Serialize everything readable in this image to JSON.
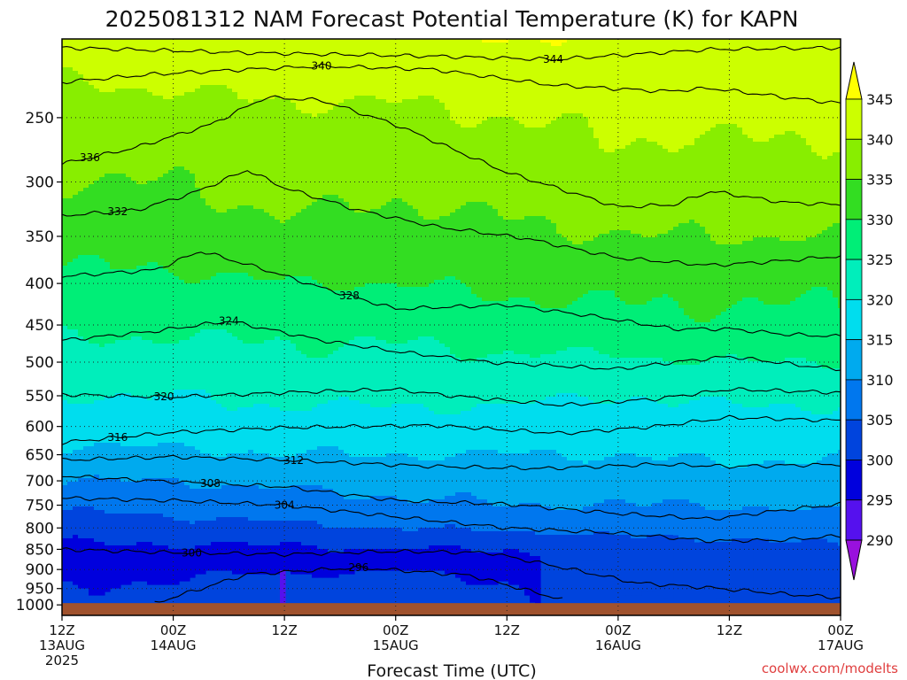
{
  "chart_data": {
    "type": "heatmap",
    "title": "2025081312 NAM Forecast Potential Temperature (K) for KAPN",
    "xlabel": "Forecast Time (UTC)",
    "ylabel": "",
    "credit": "coolwx.com/modelts",
    "credit_color": "#e04040",
    "y_scale": "log",
    "y_range_hpa": [
      1000,
      200
    ],
    "x_range_hours": [
      0,
      84
    ],
    "y_ticks": [
      250,
      300,
      350,
      400,
      450,
      500,
      550,
      600,
      650,
      700,
      750,
      800,
      850,
      900,
      950,
      1000
    ],
    "x_ticks": [
      {
        "hour": 0,
        "top": "12Z",
        "mid": "13AUG",
        "bot": "2025"
      },
      {
        "hour": 12,
        "top": "00Z",
        "mid": "14AUG",
        "bot": ""
      },
      {
        "hour": 24,
        "top": "12Z",
        "mid": "",
        "bot": ""
      },
      {
        "hour": 36,
        "top": "00Z",
        "mid": "15AUG",
        "bot": ""
      },
      {
        "hour": 48,
        "top": "12Z",
        "mid": "",
        "bot": ""
      },
      {
        "hour": 60,
        "top": "00Z",
        "mid": "16AUG",
        "bot": ""
      },
      {
        "hour": 72,
        "top": "12Z",
        "mid": "",
        "bot": ""
      },
      {
        "hour": 84,
        "top": "00Z",
        "mid": "17AUG",
        "bot": ""
      }
    ],
    "grid": true,
    "ground_color": "#a0522d",
    "colorbar": {
      "position": "right",
      "labels": [
        345,
        340,
        335,
        330,
        325,
        320,
        315,
        310,
        305,
        300,
        295,
        290
      ],
      "bands": [
        {
          "from": 345,
          "to": 350,
          "color": "#ffff00"
        },
        {
          "from": 340,
          "to": 345,
          "color": "#ccff00"
        },
        {
          "from": 335,
          "to": 340,
          "color": "#88ee00"
        },
        {
          "from": 330,
          "to": 335,
          "color": "#33dd22"
        },
        {
          "from": 325,
          "to": 330,
          "color": "#00ee77"
        },
        {
          "from": 320,
          "to": 325,
          "color": "#00eebb"
        },
        {
          "from": 315,
          "to": 320,
          "color": "#00ddee"
        },
        {
          "from": 310,
          "to": 315,
          "color": "#00aaee"
        },
        {
          "from": 305,
          "to": 310,
          "color": "#0077ee"
        },
        {
          "from": 300,
          "to": 305,
          "color": "#0044dd"
        },
        {
          "from": 295,
          "to": 300,
          "color": "#0000dd"
        },
        {
          "from": 290,
          "to": 295,
          "color": "#5511ee"
        },
        {
          "from": 285,
          "to": 290,
          "color": "#9911dd"
        }
      ]
    },
    "isentropes": [
      {
        "theta": 344,
        "label_at_hour": 53,
        "p_at_hours": [
          [
            0,
            205
          ],
          [
            20,
            208
          ],
          [
            40,
            210
          ],
          [
            53,
            212
          ],
          [
            70,
            206
          ],
          [
            84,
            205
          ]
        ]
      },
      {
        "theta": 340,
        "label_at_hour": 28,
        "p_at_hours": [
          [
            0,
            226
          ],
          [
            10,
            221
          ],
          [
            20,
            218
          ],
          [
            28,
            216
          ],
          [
            40,
            218
          ],
          [
            53,
            228
          ],
          [
            65,
            232
          ],
          [
            70,
            230
          ],
          [
            78,
            236
          ],
          [
            84,
            240
          ]
        ]
      },
      {
        "theta": 336,
        "label_at_hour": 3,
        "p_at_hours": [
          [
            0,
            285
          ],
          [
            8,
            272
          ],
          [
            16,
            255
          ],
          [
            22,
            236
          ],
          [
            28,
            238
          ],
          [
            36,
            255
          ],
          [
            48,
            292
          ],
          [
            60,
            322
          ],
          [
            66,
            320
          ],
          [
            70,
            308
          ],
          [
            78,
            318
          ],
          [
            84,
            320
          ]
        ]
      },
      {
        "theta": 332,
        "label_at_hour": 6,
        "p_at_hours": [
          [
            0,
            330
          ],
          [
            8,
            325
          ],
          [
            14,
            310
          ],
          [
            20,
            290
          ],
          [
            24,
            305
          ],
          [
            32,
            325
          ],
          [
            40,
            340
          ],
          [
            50,
            352
          ],
          [
            60,
            372
          ],
          [
            70,
            380
          ],
          [
            78,
            375
          ],
          [
            84,
            370
          ]
        ]
      },
      {
        "theta": 328,
        "label_at_hour": 31,
        "p_at_hours": [
          [
            0,
            392
          ],
          [
            10,
            385
          ],
          [
            15,
            365
          ],
          [
            22,
            385
          ],
          [
            28,
            405
          ],
          [
            36,
            430
          ],
          [
            48,
            425
          ],
          [
            58,
            440
          ],
          [
            66,
            455
          ],
          [
            72,
            455
          ],
          [
            78,
            462
          ],
          [
            84,
            465
          ]
        ]
      },
      {
        "theta": 324,
        "label_at_hour": 18,
        "p_at_hours": [
          [
            0,
            470
          ],
          [
            10,
            458
          ],
          [
            18,
            445
          ],
          [
            28,
            470
          ],
          [
            36,
            485
          ],
          [
            46,
            500
          ],
          [
            60,
            510
          ],
          [
            66,
            500
          ],
          [
            72,
            492
          ],
          [
            80,
            505
          ],
          [
            84,
            510
          ]
        ]
      },
      {
        "theta": 320,
        "label_at_hour": 11,
        "p_at_hours": [
          [
            0,
            548
          ],
          [
            12,
            552
          ],
          [
            24,
            545
          ],
          [
            36,
            540
          ],
          [
            42,
            550
          ],
          [
            54,
            565
          ],
          [
            64,
            555
          ],
          [
            72,
            540
          ],
          [
            84,
            545
          ]
        ]
      },
      {
        "theta": 316,
        "label_at_hour": 6,
        "p_at_hours": [
          [
            0,
            628
          ],
          [
            12,
            610
          ],
          [
            24,
            602
          ],
          [
            40,
            598
          ],
          [
            54,
            612
          ],
          [
            64,
            600
          ],
          [
            72,
            585
          ],
          [
            84,
            590
          ]
        ]
      },
      {
        "theta": 312,
        "label_at_hour": 25,
        "p_at_hours": [
          [
            0,
            660
          ],
          [
            12,
            654
          ],
          [
            24,
            660
          ],
          [
            40,
            672
          ],
          [
            52,
            676
          ],
          [
            64,
            668
          ],
          [
            72,
            672
          ],
          [
            84,
            668
          ]
        ]
      },
      {
        "theta": 308,
        "label_at_hour": 16,
        "p_at_hours": [
          [
            0,
            690
          ],
          [
            12,
            702
          ],
          [
            24,
            712
          ],
          [
            36,
            740
          ],
          [
            48,
            748
          ],
          [
            60,
            768
          ],
          [
            70,
            780
          ],
          [
            78,
            760
          ],
          [
            84,
            748
          ]
        ]
      },
      {
        "theta": 304,
        "label_at_hour": 24,
        "p_at_hours": [
          [
            0,
            735
          ],
          [
            12,
            740
          ],
          [
            24,
            750
          ],
          [
            36,
            775
          ],
          [
            48,
            800
          ],
          [
            60,
            812
          ],
          [
            70,
            830
          ],
          [
            78,
            828
          ],
          [
            84,
            818
          ]
        ]
      },
      {
        "theta": 300,
        "label_at_hour": 14,
        "p_at_hours": [
          [
            0,
            850
          ],
          [
            12,
            858
          ],
          [
            24,
            862
          ],
          [
            36,
            855
          ],
          [
            46,
            858
          ],
          [
            54,
            895
          ],
          [
            62,
            935
          ],
          [
            70,
            948
          ],
          [
            78,
            965
          ],
          [
            84,
            975
          ]
        ]
      },
      {
        "theta": 296,
        "label_at_hour": 32,
        "p_at_hours": [
          [
            10,
            990
          ],
          [
            20,
            912
          ],
          [
            32,
            895
          ],
          [
            44,
            915
          ],
          [
            54,
            980
          ]
        ]
      }
    ],
    "field_samples": {
      "pressures": [
        200,
        250,
        300,
        350,
        400,
        450,
        500,
        550,
        600,
        650,
        700,
        750,
        800,
        850,
        900,
        950,
        1000
      ],
      "hours": [
        0,
        12,
        24,
        36,
        48,
        60,
        72,
        84
      ],
      "theta": [
        [
          343,
          344,
          344,
          344,
          345,
          344,
          344,
          344
        ],
        [
          337,
          338,
          339,
          339,
          340,
          341,
          341,
          341
        ],
        [
          335,
          335,
          337,
          336,
          337,
          338,
          338,
          338
        ],
        [
          332,
          332,
          334,
          333,
          334,
          335,
          335,
          335
        ],
        [
          329,
          329,
          330,
          330,
          331,
          331,
          331,
          331
        ],
        [
          326,
          326,
          326,
          326,
          328,
          329,
          329,
          329
        ],
        [
          323,
          323,
          324,
          324,
          324,
          324,
          325,
          325
        ],
        [
          320,
          320,
          321,
          321,
          321,
          320,
          321,
          321
        ],
        [
          317,
          318,
          318,
          318,
          318,
          317,
          318,
          318
        ],
        [
          314,
          314,
          315,
          315,
          315,
          315,
          316,
          315
        ],
        [
          310,
          310,
          311,
          312,
          312,
          312,
          313,
          313
        ],
        [
          306,
          307,
          308,
          309,
          310,
          310,
          310,
          311
        ],
        [
          302,
          303,
          304,
          305,
          306,
          307,
          307,
          308
        ],
        [
          299,
          299,
          299,
          300,
          300,
          302,
          303,
          304
        ],
        [
          297,
          296,
          296,
          295,
          297,
          301,
          301,
          302
        ],
        [
          295,
          294,
          291,
          293,
          294,
          300,
          301,
          302
        ],
        [
          294,
          293,
          290,
          292,
          293,
          299,
          300,
          301
        ]
      ]
    }
  }
}
